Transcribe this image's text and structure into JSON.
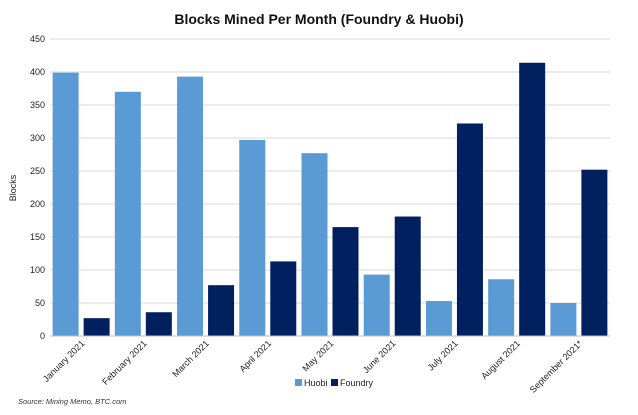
{
  "chart_data": {
    "type": "bar",
    "title": "Blocks Mined Per Month (Foundry & Huobi)",
    "xlabel": "",
    "ylabel": "Blocks",
    "ylim": [
      0,
      450
    ],
    "yticks": [
      0,
      50,
      100,
      150,
      200,
      250,
      300,
      350,
      400,
      450
    ],
    "grid": true,
    "legend": "bottom",
    "categories": [
      "January 2021",
      "February 2021",
      "March 2021",
      "April 2021",
      "May 2021",
      "June 2021",
      "July 2021",
      "August 2021",
      "September 2021*"
    ],
    "series": [
      {
        "name": "Huobi",
        "color": "#5b9bd5",
        "values": [
          399,
          370,
          393,
          297,
          277,
          93,
          53,
          86,
          50
        ]
      },
      {
        "name": "Foundry",
        "color": "#002060",
        "values": [
          27,
          36,
          77,
          113,
          165,
          181,
          322,
          414,
          252
        ]
      }
    ]
  },
  "source": "Source: Mining Memo, BTC.com"
}
